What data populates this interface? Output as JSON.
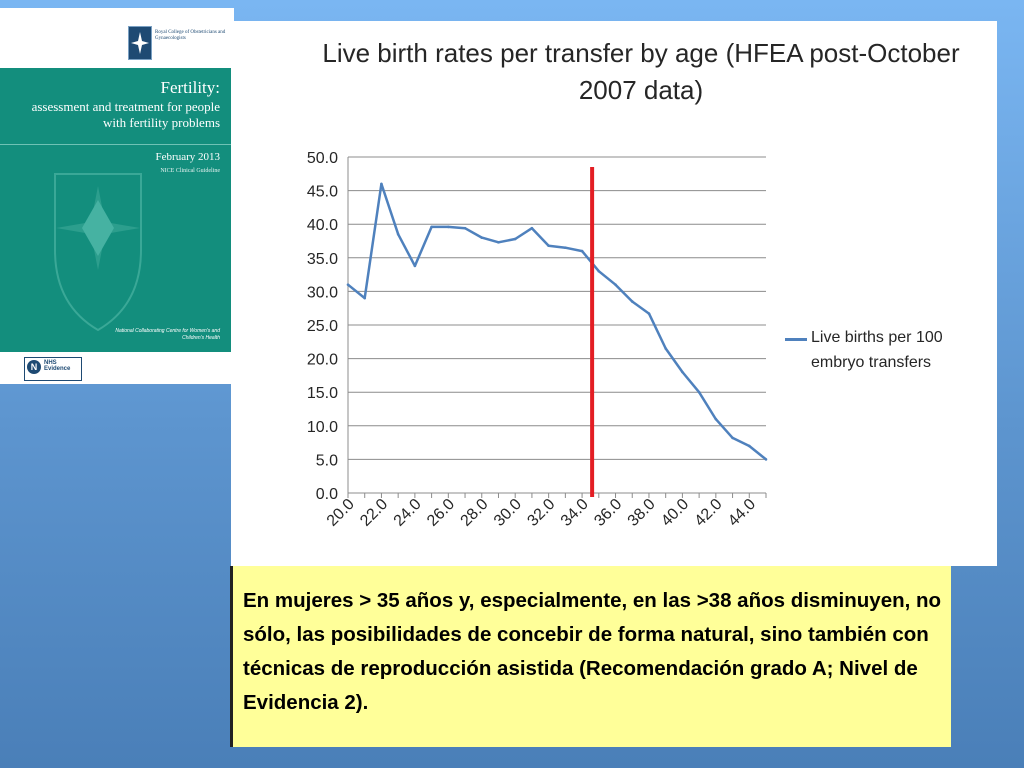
{
  "cover": {
    "college": "Royal College of Obstetricians and Gynaecologists",
    "title": "Fertility:",
    "subtitle": "assessment and treatment for people with fertility problems",
    "date": "February 2013",
    "guideline": "NICE Clinical Guideline",
    "centre": "National Collaborating Centre for Women's and Children's Health",
    "badge": "NHS Evidence",
    "colors": {
      "background": "#138e7d",
      "navy": "#1e4a73"
    }
  },
  "chart_data": {
    "type": "line",
    "title": "Live birth rates per transfer by age (HFEA post-October 2007 data)",
    "x": [
      20,
      21,
      22,
      23,
      24,
      25,
      26,
      27,
      28,
      29,
      30,
      31,
      32,
      33,
      34,
      35,
      36,
      37,
      38,
      39,
      40,
      41,
      42,
      43,
      44,
      45
    ],
    "x_tick_labels": [
      "20.0",
      "22.0",
      "24.0",
      "26.0",
      "28.0",
      "30.0",
      "32.0",
      "34.0",
      "36.0",
      "38.0",
      "40.0",
      "42.0",
      "44.0"
    ],
    "y_tick_labels": [
      "0.0",
      "5.0",
      "10.0",
      "15.0",
      "20.0",
      "25.0",
      "30.0",
      "35.0",
      "40.0",
      "45.0",
      "50.0"
    ],
    "series": [
      {
        "name": "Live births per 100 embryo transfers",
        "color": "#4f81bd",
        "values": [
          31.0,
          29.0,
          46.0,
          38.5,
          33.8,
          39.6,
          39.6,
          39.4,
          38.0,
          37.3,
          37.8,
          39.4,
          36.8,
          36.5,
          36.0,
          33.0,
          31.0,
          28.5,
          26.7,
          21.5,
          18.0,
          15.0,
          11.0,
          8.2,
          7.0,
          5.0
        ]
      }
    ],
    "reference_line": {
      "x": 34.6,
      "color": "#e31e24"
    },
    "ylim": [
      0,
      50
    ],
    "xlim": [
      20,
      45
    ],
    "grid": "horizontal",
    "legend": "right"
  },
  "note": {
    "text": "En mujeres > 35 años y, especialmente, en las >38 años disminuyen, no sólo, las posibilidades de concebir de forma natural, sino también con técnicas de reproducción asistida (Recomendación grado A; Nivel de Evidencia 2).",
    "background": "#ffff99"
  }
}
